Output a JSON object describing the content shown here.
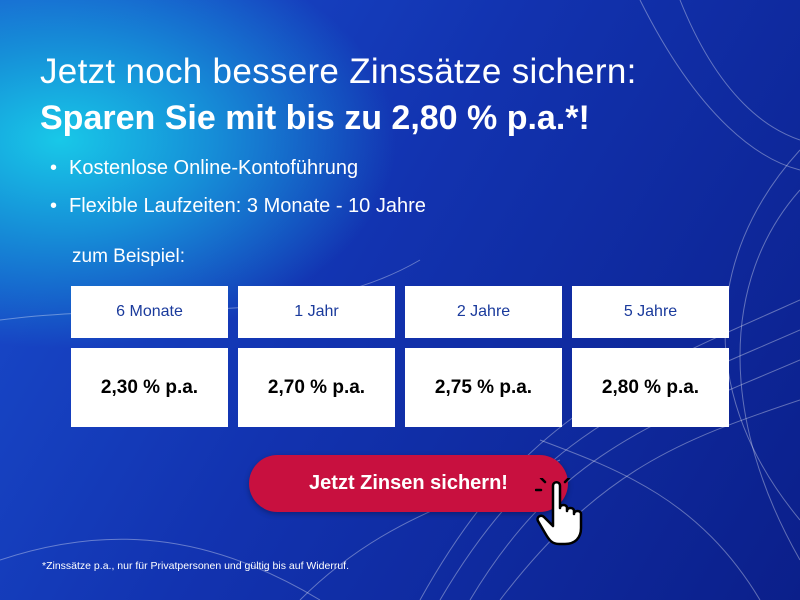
{
  "headline": {
    "line1": "Jetzt noch bessere Zinssätze sichern:",
    "line2": "Sparen Sie mit bis zu 2,80 % p.a.*!"
  },
  "bullets": [
    "Kostenlose Online-Kontoführung",
    "Flexible Laufzeiten: 3 Monate - 10 Jahre"
  ],
  "example_label": "zum Beispiel:",
  "table": {
    "columns": [
      {
        "term": "6 Monate",
        "rate": "2,30 % p.a."
      },
      {
        "term": "1 Jahr",
        "rate": "2,70 % p.a."
      },
      {
        "term": "2 Jahre",
        "rate": "2,75 % p.a."
      },
      {
        "term": "5 Jahre",
        "rate": "2,80 % p.a."
      }
    ]
  },
  "button": "Jetzt Zinsen sichern!",
  "footnote": "*Zinssätze p.a., nur für Privatpersonen und gültig bis auf Widerruf."
}
